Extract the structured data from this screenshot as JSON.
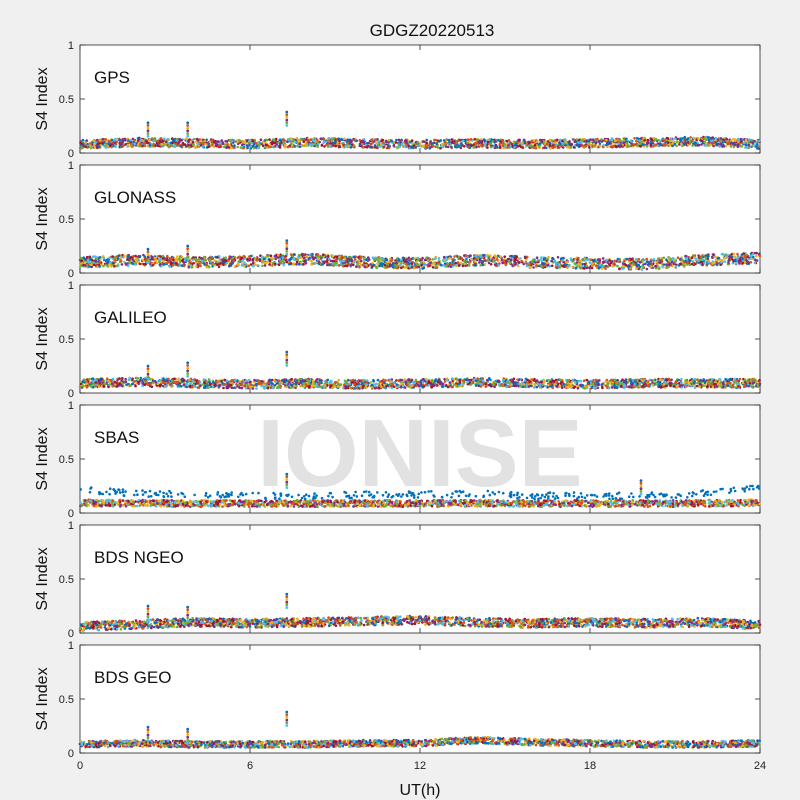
{
  "chart_data": {
    "type": "scatter",
    "title": "GDGZ20220513",
    "xlabel": "UT(h)",
    "ylabel": "S4 Index",
    "xlim": [
      0,
      24
    ],
    "ylim": [
      0,
      1
    ],
    "xticks": [
      "0",
      "6",
      "12",
      "18",
      "24"
    ],
    "yticks": [
      "0",
      "0.5",
      "1"
    ],
    "grid": false,
    "watermark": "IONISE",
    "colors": [
      "#0072BD",
      "#D95319",
      "#EDB120",
      "#7E2F8E",
      "#77AC30",
      "#4DBEEE",
      "#A2142F"
    ],
    "panels": [
      {
        "label": "GPS",
        "baseline": 0.08,
        "spread": 0.04,
        "series": [
          {
            "x": [
              0,
              2,
              4,
              6,
              8,
              10,
              12,
              14,
              16,
              18,
              20,
              22,
              24
            ],
            "y": [
              0.08,
              0.1,
              0.09,
              0.08,
              0.1,
              0.09,
              0.08,
              0.09,
              0.08,
              0.09,
              0.1,
              0.11,
              0.08
            ]
          }
        ],
        "spikes": [
          {
            "x": 2.4,
            "y": 0.28
          },
          {
            "x": 3.8,
            "y": 0.28
          },
          {
            "x": 7.3,
            "y": 0.38
          }
        ]
      },
      {
        "label": "GLONASS",
        "baseline": 0.09,
        "spread": 0.05,
        "series": [
          {
            "x": [
              0,
              2,
              4,
              6,
              8,
              10,
              12,
              14,
              16,
              18,
              20,
              22,
              24
            ],
            "y": [
              0.1,
              0.12,
              0.1,
              0.11,
              0.13,
              0.1,
              0.09,
              0.12,
              0.1,
              0.09,
              0.08,
              0.12,
              0.14
            ]
          }
        ],
        "spikes": [
          {
            "x": 2.4,
            "y": 0.22
          },
          {
            "x": 3.8,
            "y": 0.25
          },
          {
            "x": 7.3,
            "y": 0.3
          }
        ]
      },
      {
        "label": "GALILEO",
        "baseline": 0.08,
        "spread": 0.04,
        "series": [
          {
            "x": [
              0,
              2,
              4,
              6,
              8,
              10,
              12,
              14,
              16,
              18,
              20,
              22,
              24
            ],
            "y": [
              0.09,
              0.1,
              0.09,
              0.08,
              0.09,
              0.08,
              0.09,
              0.1,
              0.09,
              0.08,
              0.09,
              0.09,
              0.09
            ]
          }
        ],
        "spikes": [
          {
            "x": 2.4,
            "y": 0.25
          },
          {
            "x": 3.8,
            "y": 0.28
          },
          {
            "x": 7.3,
            "y": 0.38
          }
        ]
      },
      {
        "label": "SBAS",
        "baseline": 0.08,
        "spread": 0.03,
        "series": [
          {
            "x": [
              0,
              2,
              4,
              6,
              8,
              10,
              12,
              14,
              16,
              18,
              20,
              22,
              24
            ],
            "y": [
              0.22,
              0.18,
              0.17,
              0.16,
              0.16,
              0.17,
              0.17,
              0.18,
              0.16,
              0.16,
              0.16,
              0.18,
              0.25
            ]
          }
        ],
        "spikes": [
          {
            "x": 7.3,
            "y": 0.36
          },
          {
            "x": 19.8,
            "y": 0.3
          }
        ]
      },
      {
        "label": "BDS NGEO",
        "baseline": 0.08,
        "spread": 0.04,
        "series": [
          {
            "x": [
              0,
              2,
              4,
              6,
              8,
              10,
              12,
              14,
              16,
              18,
              20,
              22,
              24
            ],
            "y": [
              0.06,
              0.08,
              0.1,
              0.09,
              0.1,
              0.11,
              0.12,
              0.1,
              0.09,
              0.1,
              0.09,
              0.1,
              0.07
            ]
          }
        ],
        "spikes": [
          {
            "x": 2.4,
            "y": 0.25
          },
          {
            "x": 3.8,
            "y": 0.24
          },
          {
            "x": 7.3,
            "y": 0.36
          }
        ]
      },
      {
        "label": "BDS GEO",
        "baseline": 0.07,
        "spread": 0.03,
        "series": [
          {
            "x": [
              0,
              2,
              4,
              6,
              8,
              10,
              12,
              14,
              16,
              18,
              20,
              22,
              24
            ],
            "y": [
              0.08,
              0.09,
              0.08,
              0.08,
              0.08,
              0.09,
              0.09,
              0.12,
              0.1,
              0.09,
              0.08,
              0.08,
              0.09
            ]
          }
        ],
        "spikes": [
          {
            "x": 2.4,
            "y": 0.24
          },
          {
            "x": 3.8,
            "y": 0.22
          },
          {
            "x": 7.3,
            "y": 0.38
          }
        ]
      }
    ]
  }
}
